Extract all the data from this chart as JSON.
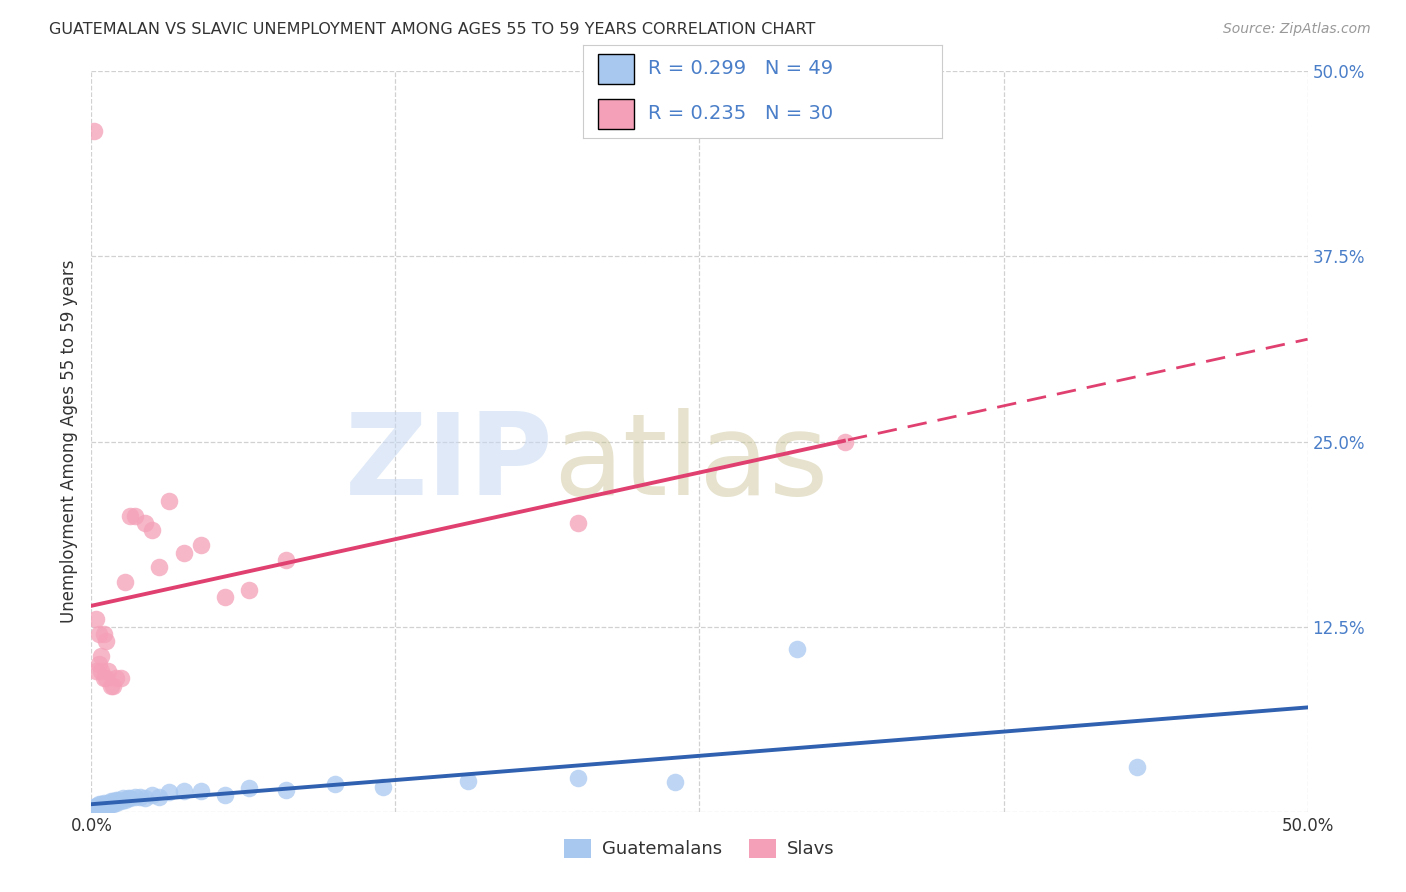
{
  "title": "GUATEMALAN VS SLAVIC UNEMPLOYMENT AMONG AGES 55 TO 59 YEARS CORRELATION CHART",
  "source": "Source: ZipAtlas.com",
  "ylabel": "Unemployment Among Ages 55 to 59 years",
  "xlim": [
    0.0,
    0.5
  ],
  "ylim": [
    0.0,
    0.5
  ],
  "xtick_positions": [
    0.0,
    0.125,
    0.25,
    0.375,
    0.5
  ],
  "ytick_positions": [
    0.0,
    0.125,
    0.25,
    0.375,
    0.5
  ],
  "xticklabels": [
    "0.0%",
    "",
    "",
    "",
    "50.0%"
  ],
  "yticklabels": [
    "",
    "12.5%",
    "25.0%",
    "37.5%",
    "50.0%"
  ],
  "guatemalan_color": "#a8c8f0",
  "slavic_color": "#f4a0b8",
  "guatemalan_line_color": "#3060b0",
  "slavic_line_color": "#e04070",
  "legend_text_color": "#4a7ec8",
  "title_color": "#333333",
  "source_color": "#999999",
  "ytick_color": "#4a7ec8",
  "xtick_color": "#333333",
  "grid_color": "#cccccc",
  "legend_R_guatemalan": "0.299",
  "legend_N_guatemalan": "49",
  "legend_R_slavic": "0.235",
  "legend_N_slavic": "30",
  "guatemalan_x": [
    0.001,
    0.002,
    0.002,
    0.003,
    0.003,
    0.003,
    0.004,
    0.004,
    0.004,
    0.005,
    0.005,
    0.005,
    0.005,
    0.006,
    0.006,
    0.006,
    0.007,
    0.007,
    0.007,
    0.008,
    0.008,
    0.009,
    0.009,
    0.01,
    0.01,
    0.011,
    0.012,
    0.013,
    0.014,
    0.015,
    0.016,
    0.018,
    0.02,
    0.022,
    0.025,
    0.028,
    0.032,
    0.038,
    0.045,
    0.055,
    0.065,
    0.08,
    0.1,
    0.12,
    0.155,
    0.2,
    0.24,
    0.29,
    0.43
  ],
  "guatemalan_y": [
    0.003,
    0.004,
    0.002,
    0.003,
    0.005,
    0.002,
    0.004,
    0.003,
    0.005,
    0.004,
    0.003,
    0.006,
    0.002,
    0.004,
    0.005,
    0.003,
    0.005,
    0.004,
    0.006,
    0.005,
    0.007,
    0.005,
    0.007,
    0.006,
    0.008,
    0.008,
    0.007,
    0.009,
    0.008,
    0.009,
    0.009,
    0.01,
    0.01,
    0.009,
    0.011,
    0.01,
    0.013,
    0.014,
    0.014,
    0.011,
    0.016,
    0.015,
    0.019,
    0.017,
    0.021,
    0.023,
    0.02,
    0.11,
    0.03
  ],
  "slavic_x": [
    0.001,
    0.002,
    0.002,
    0.003,
    0.003,
    0.004,
    0.004,
    0.005,
    0.005,
    0.006,
    0.006,
    0.007,
    0.008,
    0.009,
    0.01,
    0.012,
    0.014,
    0.016,
    0.018,
    0.022,
    0.025,
    0.028,
    0.032,
    0.038,
    0.045,
    0.055,
    0.065,
    0.08,
    0.2,
    0.31
  ],
  "slavic_y": [
    0.46,
    0.095,
    0.13,
    0.1,
    0.12,
    0.105,
    0.095,
    0.09,
    0.12,
    0.09,
    0.115,
    0.095,
    0.085,
    0.085,
    0.09,
    0.09,
    0.155,
    0.2,
    0.2,
    0.195,
    0.19,
    0.165,
    0.21,
    0.175,
    0.18,
    0.145,
    0.15,
    0.17,
    0.195,
    0.25
  ]
}
